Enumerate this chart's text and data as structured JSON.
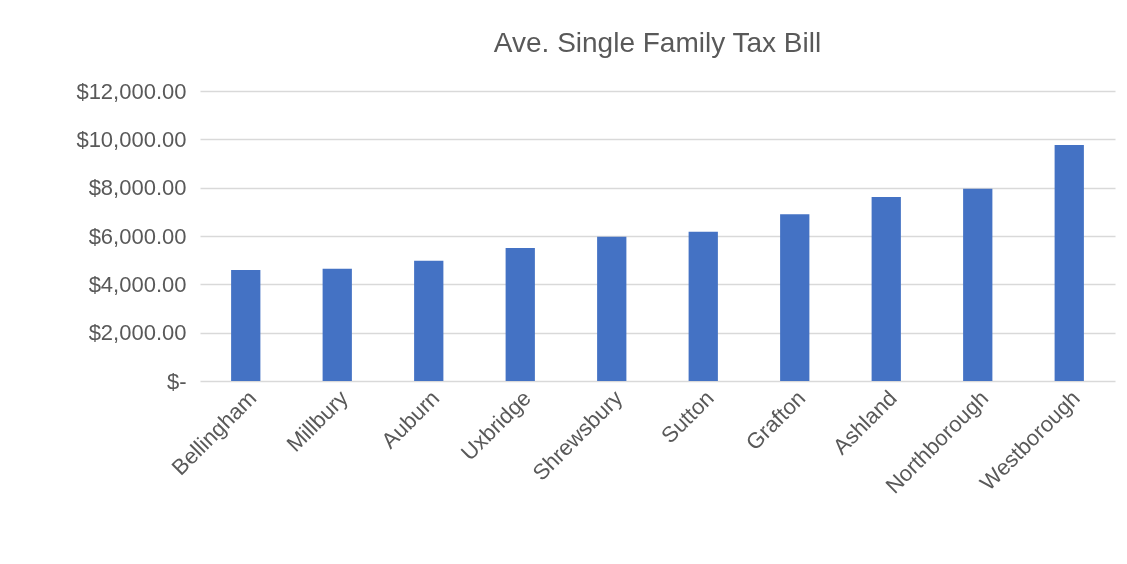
{
  "chart_data": {
    "type": "bar",
    "title": "Ave. Single Family Tax Bill",
    "categories": [
      "Bellingham",
      "Millbury",
      "Auburn",
      "Uxbridge",
      "Shrewsbury",
      "Sutton",
      "Grafton",
      "Ashland",
      "Northborough",
      "Westborough"
    ],
    "values": [
      4590,
      4650,
      4980,
      5500,
      5970,
      6180,
      6900,
      7610,
      7960,
      9770
    ],
    "color": "#4472c4",
    "ylim": [
      0,
      12000
    ],
    "yticks": [
      {
        "value": 0,
        "label": "$-"
      },
      {
        "value": 2000,
        "label": "$2,000.00"
      },
      {
        "value": 4000,
        "label": "$4,000.00"
      },
      {
        "value": 6000,
        "label": "$6,000.00"
      },
      {
        "value": 8000,
        "label": "$8,000.00"
      },
      {
        "value": 10000,
        "label": "$10,000.00"
      },
      {
        "value": 12000,
        "label": "$12,000.00"
      }
    ],
    "grid": "y"
  }
}
